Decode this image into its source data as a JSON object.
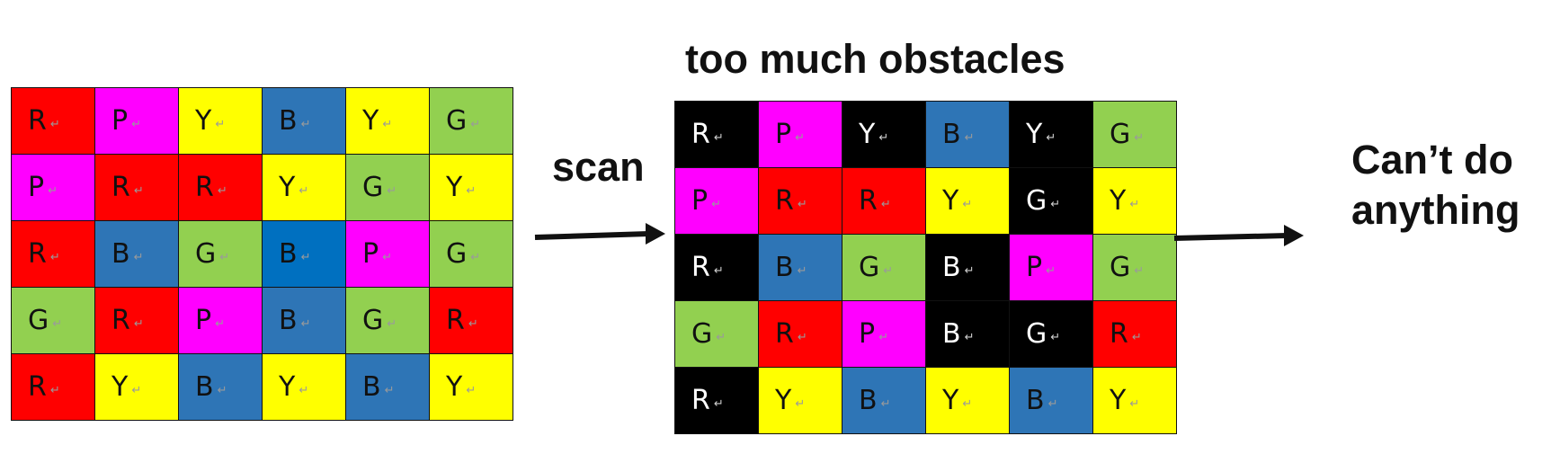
{
  "labels": {
    "top": "too much obstacles",
    "scan": "scan",
    "result_line1": "Can’t do",
    "result_line2": "anything"
  },
  "return_mark": "↵",
  "colors": {
    "R": "#ff0000",
    "P": "#ff00ff",
    "Y": "#ffff00",
    "B": "#2e75b6",
    "Bd": "#0070c0",
    "G": "#92d050",
    "K": "#000000"
  },
  "grids": {
    "left": [
      [
        {
          "l": "R",
          "c": "R"
        },
        {
          "l": "P",
          "c": "P"
        },
        {
          "l": "Y",
          "c": "Y"
        },
        {
          "l": "B",
          "c": "B"
        },
        {
          "l": "Y",
          "c": "Y"
        },
        {
          "l": "G",
          "c": "G"
        }
      ],
      [
        {
          "l": "P",
          "c": "P"
        },
        {
          "l": "R",
          "c": "R"
        },
        {
          "l": "R",
          "c": "R"
        },
        {
          "l": "Y",
          "c": "Y"
        },
        {
          "l": "G",
          "c": "G"
        },
        {
          "l": "Y",
          "c": "Y"
        }
      ],
      [
        {
          "l": "R",
          "c": "R"
        },
        {
          "l": "B",
          "c": "B"
        },
        {
          "l": "G",
          "c": "G"
        },
        {
          "l": "B",
          "c": "Bd"
        },
        {
          "l": "P",
          "c": "P"
        },
        {
          "l": "G",
          "c": "G"
        }
      ],
      [
        {
          "l": "G",
          "c": "G"
        },
        {
          "l": "R",
          "c": "R"
        },
        {
          "l": "P",
          "c": "P"
        },
        {
          "l": "B",
          "c": "B"
        },
        {
          "l": "G",
          "c": "G"
        },
        {
          "l": "R",
          "c": "R"
        }
      ],
      [
        {
          "l": "R",
          "c": "R"
        },
        {
          "l": "Y",
          "c": "Y"
        },
        {
          "l": "B",
          "c": "B"
        },
        {
          "l": "Y",
          "c": "Y"
        },
        {
          "l": "B",
          "c": "B"
        },
        {
          "l": "Y",
          "c": "Y"
        }
      ]
    ],
    "right": [
      [
        {
          "l": "R",
          "c": "K"
        },
        {
          "l": "P",
          "c": "P"
        },
        {
          "l": "Y",
          "c": "K"
        },
        {
          "l": "B",
          "c": "B"
        },
        {
          "l": "Y",
          "c": "K"
        },
        {
          "l": "G",
          "c": "G"
        }
      ],
      [
        {
          "l": "P",
          "c": "P"
        },
        {
          "l": "R",
          "c": "R"
        },
        {
          "l": "R",
          "c": "R"
        },
        {
          "l": "Y",
          "c": "Y"
        },
        {
          "l": "G",
          "c": "K"
        },
        {
          "l": "Y",
          "c": "Y"
        }
      ],
      [
        {
          "l": "R",
          "c": "K"
        },
        {
          "l": "B",
          "c": "B"
        },
        {
          "l": "G",
          "c": "G"
        },
        {
          "l": "B",
          "c": "K"
        },
        {
          "l": "P",
          "c": "P"
        },
        {
          "l": "G",
          "c": "G"
        }
      ],
      [
        {
          "l": "G",
          "c": "G"
        },
        {
          "l": "R",
          "c": "R"
        },
        {
          "l": "P",
          "c": "P"
        },
        {
          "l": "B",
          "c": "K"
        },
        {
          "l": "G",
          "c": "K"
        },
        {
          "l": "R",
          "c": "R"
        }
      ],
      [
        {
          "l": "R",
          "c": "K"
        },
        {
          "l": "Y",
          "c": "Y"
        },
        {
          "l": "B",
          "c": "B"
        },
        {
          "l": "Y",
          "c": "Y"
        },
        {
          "l": "B",
          "c": "B"
        },
        {
          "l": "Y",
          "c": "Y"
        }
      ]
    ]
  }
}
